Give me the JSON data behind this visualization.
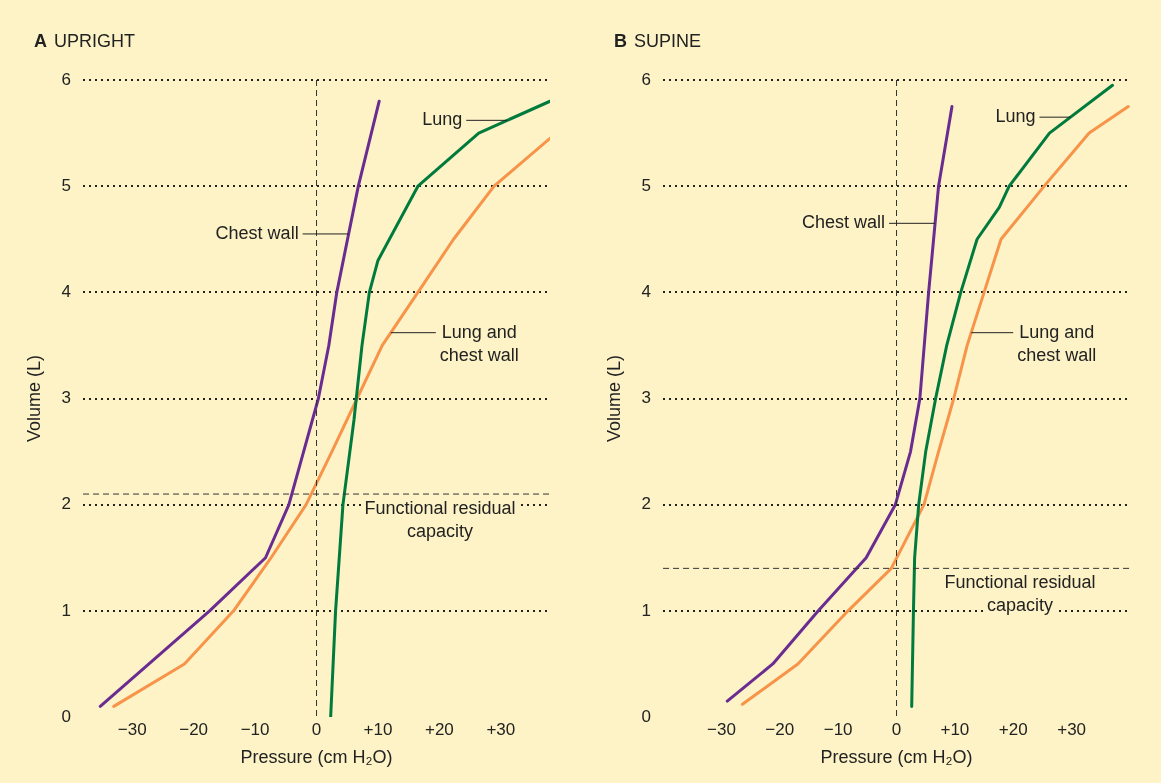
{
  "chart_data": [
    {
      "type": "line",
      "title": "A UPRIGHT",
      "xlabel": "Pressure (cm H₂O)",
      "ylabel": "Volume (L)",
      "xlim": [
        -38,
        38
      ],
      "ylim": [
        0,
        6
      ],
      "xticks": [
        {
          "value": -30,
          "label": "−30"
        },
        {
          "value": -20,
          "label": "−20"
        },
        {
          "value": -10,
          "label": "−10"
        },
        0,
        {
          "value": 10,
          "label": "+10"
        },
        {
          "value": 20,
          "label": "+20"
        },
        {
          "value": 30,
          "label": "+30"
        }
      ],
      "yticks": [
        0,
        1,
        2,
        3,
        4,
        5,
        6
      ],
      "grid": "y",
      "legend": false,
      "marker": "none",
      "line_style": "solid",
      "ref_lines": [
        {
          "axis": "x",
          "value": 0,
          "line_style": "dashed"
        },
        {
          "axis": "y",
          "value": 2.1,
          "label": "Functional residual capacity",
          "line_style": "dashed"
        }
      ],
      "series": [
        {
          "name": "Chest wall",
          "color": "#6a2c91",
          "x": [
            -35.2,
            -17.4,
            -8.3,
            -4.5,
            -2.1,
            0.3,
            2,
            3.3,
            6.8,
            10.2
          ],
          "values": [
            0.1,
            1,
            1.5,
            2,
            2.5,
            3,
            3.5,
            4,
            5,
            5.8
          ]
        },
        {
          "name": "Lung",
          "color": "#007a3d",
          "x": [
            2.3,
            3.1,
            4.3,
            6.1,
            7.4,
            8.6,
            10,
            16.5,
            26.4,
            38
          ],
          "values": [
            0,
            1,
            2,
            2.8,
            3.5,
            4,
            4.3,
            5,
            5.5,
            5.8
          ]
        },
        {
          "name": "Lung and chest wall",
          "color": "#f7944a",
          "x": [
            -33,
            -21.5,
            -13.5,
            -7.4,
            -1.7,
            2.5,
            6.6,
            10.7,
            16.5,
            22.3,
            28.9,
            38
          ],
          "values": [
            0.1,
            0.5,
            1,
            1.5,
            2,
            2.5,
            3,
            3.5,
            4,
            4.5,
            5,
            5.45
          ]
        }
      ]
    },
    {
      "type": "line",
      "title": "B SUPINE",
      "xlabel": "Pressure (cm H₂O)",
      "ylabel": "Volume (L)",
      "xlim": [
        -40,
        40
      ],
      "ylim": [
        0,
        6
      ],
      "xticks": [
        {
          "value": -30,
          "label": "−30"
        },
        {
          "value": -20,
          "label": "−20"
        },
        {
          "value": -10,
          "label": "−10"
        },
        0,
        {
          "value": 10,
          "label": "+10"
        },
        {
          "value": 20,
          "label": "+20"
        },
        {
          "value": 30,
          "label": "+30"
        }
      ],
      "yticks": [
        0,
        1,
        2,
        3,
        4,
        5,
        6
      ],
      "grid": "y",
      "legend": false,
      "marker": "none",
      "line_style": "solid",
      "ref_lines": [
        {
          "axis": "x",
          "value": 0,
          "line_style": "dashed"
        },
        {
          "axis": "y",
          "value": 1.4,
          "label": "Functional residual capacity",
          "line_style": "dashed"
        }
      ],
      "series": [
        {
          "name": "Chest wall",
          "color": "#6a2c91",
          "x": [
            -29,
            -21.2,
            -13.4,
            -5.2,
            -0.2,
            2.4,
            4,
            5.5,
            7.2,
            9.5
          ],
          "values": [
            0.15,
            0.5,
            1,
            1.5,
            2,
            2.5,
            3,
            4,
            5,
            5.75
          ]
        },
        {
          "name": "Lung",
          "color": "#007a3d",
          "x": [
            2.6,
            2.9,
            3.1,
            3.8,
            5,
            6.7,
            8.6,
            11,
            13.8,
            17.6,
            19.3,
            26.2,
            37
          ],
          "values": [
            0.1,
            1,
            1.5,
            2,
            2.5,
            3,
            3.5,
            4,
            4.5,
            4.8,
            5,
            5.5,
            5.95
          ]
        },
        {
          "name": "Lung and chest wall",
          "color": "#f7944a",
          "x": [
            -26.4,
            -16.9,
            -8.3,
            -0.9,
            4.7,
            7.2,
            9.8,
            12.1,
            15,
            17.9,
            25.3,
            33,
            39.7
          ],
          "values": [
            0.12,
            0.5,
            1,
            1.4,
            2,
            2.5,
            3,
            3.5,
            4,
            4.5,
            5,
            5.5,
            5.75
          ]
        }
      ]
    }
  ]
}
